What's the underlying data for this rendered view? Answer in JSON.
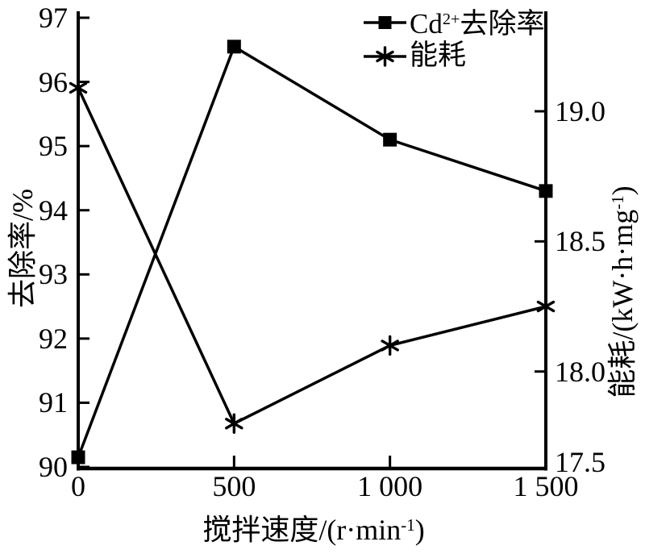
{
  "chart_data": {
    "type": "line",
    "title": "",
    "x": [
      0,
      500,
      1000,
      1500
    ],
    "x_tick_labels": [
      "0",
      "500",
      "1 000",
      "1 500"
    ],
    "xlabel": {
      "pre": "搅拌速度/(r·min",
      "sup": "-1",
      "post": ")"
    },
    "series": [
      {
        "name": "Cd²⁺去除率",
        "axis": "left",
        "marker": "square",
        "values": [
          90.15,
          96.55,
          95.1,
          94.3
        ]
      },
      {
        "name": "能耗",
        "axis": "right",
        "marker": "asterisk",
        "values": [
          19.09,
          17.8,
          18.1,
          18.25
        ]
      }
    ],
    "left_axis": {
      "label": "去除率/%",
      "tick_labels": [
        "90",
        "91",
        "92",
        "93",
        "94",
        "95",
        "96",
        "97"
      ],
      "range": [
        90,
        97
      ]
    },
    "right_axis": {
      "label_pre": "能耗/(kW·h·mg",
      "label_sup": "-1",
      "label_post": ")",
      "tick_labels": [
        "19.0",
        "18.5",
        "18.0"
      ],
      "ticks": [
        19.0,
        18.5,
        18.0
      ],
      "bottom_label": "17.5",
      "range_bottom": 17.5
    },
    "legend": {
      "position": "top-right-inside",
      "items": [
        {
          "pre": "Cd",
          "sup": "2+",
          "post": "去除率",
          "marker": "square"
        },
        {
          "pre": "能耗",
          "sup": "",
          "post": "",
          "marker": "asterisk"
        }
      ]
    },
    "grid": false,
    "colors": {
      "foreground": "#000000",
      "background": "#ffffff"
    }
  }
}
